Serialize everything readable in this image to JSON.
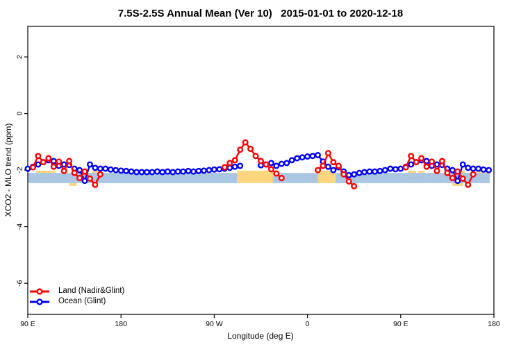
{
  "header": {
    "title": "7.5S-2.5S Annual Mean (Ver 10)   2015-01-01 to 2020-12-18"
  },
  "chart_data": {
    "type": "line",
    "title": "7.5S-2.5S Annual Mean (Ver 10)   2015-01-01 to 2020-12-18",
    "xlabel": "Longitude (deg E)",
    "ylabel": "XCO2 - MLO trend (ppm)",
    "xlim": [
      90,
      540
    ],
    "ylim": [
      -7.1,
      3.08
    ],
    "grid": false,
    "x_ticks": [
      {
        "value": 90,
        "label": "90 E"
      },
      {
        "value": 180,
        "label": "180"
      },
      {
        "value": 270,
        "label": "90 W"
      },
      {
        "value": 360,
        "label": "0"
      },
      {
        "value": 450,
        "label": "90 E"
      },
      {
        "value": 540,
        "label": "180"
      }
    ],
    "y_ticks": [
      2,
      0,
      -2,
      -4,
      -6
    ],
    "legend": {
      "position": "bottom-left",
      "entries": [
        {
          "label": "Land (Nadir&Glint)",
          "color": "#ff0000"
        },
        {
          "label": "Ocean (Glint)",
          "color": "#0000ff"
        }
      ]
    },
    "x": [
      90,
      95,
      100,
      105,
      110,
      115,
      120,
      125,
      130,
      135,
      140,
      145,
      150,
      155,
      160,
      165,
      170,
      175,
      180,
      185,
      190,
      195,
      200,
      205,
      210,
      215,
      220,
      225,
      230,
      235,
      240,
      245,
      250,
      255,
      260,
      265,
      270,
      275,
      280,
      285,
      290,
      295,
      300,
      305,
      310,
      315,
      320,
      325,
      330,
      335,
      340,
      345,
      350,
      355,
      360,
      365,
      370,
      375,
      380,
      385,
      390,
      395,
      400,
      405,
      410,
      415,
      420,
      425,
      430,
      435,
      440,
      445,
      450,
      455,
      460,
      465,
      470,
      475,
      480,
      485,
      490,
      495,
      500,
      505,
      510,
      515,
      520,
      525,
      530,
      535
    ],
    "series": [
      {
        "name": "Land (Nadir&Glint)",
        "color": "#ff0000",
        "values": [
          null,
          -1.9,
          -1.5,
          -1.72,
          -1.58,
          -1.88,
          -1.7,
          -2.03,
          -1.68,
          -2.1,
          -2.28,
          -2.05,
          -2.3,
          -2.52,
          -2.15,
          null,
          null,
          null,
          null,
          null,
          null,
          null,
          null,
          null,
          null,
          null,
          null,
          null,
          null,
          null,
          null,
          null,
          null,
          null,
          null,
          null,
          null,
          null,
          -1.9,
          -1.75,
          -1.65,
          -1.28,
          -1.02,
          -1.25,
          -1.5,
          -1.68,
          -1.8,
          -1.97,
          -2.12,
          -2.28,
          null,
          null,
          null,
          null,
          null,
          null,
          -2.0,
          -1.85,
          -1.4,
          -1.72,
          -1.85,
          -2.15,
          -2.4,
          -2.57,
          null,
          null,
          null,
          null,
          null,
          null,
          null,
          null,
          null,
          -1.9,
          -1.5,
          -1.72,
          -1.58,
          -1.88,
          -1.7,
          -2.03,
          -1.68,
          -2.1,
          -2.28,
          -2.05,
          -2.3,
          -2.52,
          -2.15,
          null,
          null,
          null
        ]
      },
      {
        "name": "Ocean (Glint)",
        "color": "#0000ff",
        "values": [
          -1.95,
          -1.88,
          -1.8,
          -1.72,
          -1.65,
          -1.68,
          -1.85,
          -1.8,
          -1.82,
          -1.95,
          -2.0,
          -2.38,
          -1.8,
          -1.92,
          -1.95,
          -1.95,
          -1.98,
          -2.0,
          -2.02,
          -2.03,
          -2.05,
          -2.07,
          -2.07,
          -2.07,
          -2.07,
          -2.05,
          -2.07,
          -2.05,
          -2.07,
          -2.05,
          -2.05,
          -2.03,
          -2.05,
          -2.03,
          -2.02,
          -2.0,
          -1.98,
          -1.97,
          -1.95,
          -1.92,
          -1.88,
          -1.85,
          null,
          null,
          null,
          -1.83,
          -1.8,
          -1.75,
          -1.85,
          -1.78,
          -1.75,
          -1.65,
          -1.58,
          -1.55,
          -1.52,
          -1.5,
          -1.47,
          -1.7,
          -1.88,
          -2.0,
          -1.9,
          -2.05,
          -2.18,
          -2.15,
          -2.1,
          -2.07,
          -2.05,
          -2.05,
          -2.03,
          -2.0,
          -1.95,
          -1.97,
          -1.95,
          -1.88,
          -1.8,
          -1.72,
          -1.65,
          -1.68,
          -1.85,
          -1.8,
          -1.82,
          -1.95,
          -2.0,
          -2.38,
          -1.8,
          -1.92,
          -1.95,
          -1.95,
          -1.98,
          -2.0
        ]
      }
    ],
    "bands": {
      "blue_color": "#aac6e2",
      "yellow_color": "#fbd67e",
      "yellow_top": -2.02,
      "blue_top": -2.1,
      "band_bottom": -2.46,
      "bottom_patch_bottom": -2.56,
      "blue_segments": [
        [
          90,
          292
        ],
        [
          327,
          370
        ],
        [
          387,
          536
        ]
      ],
      "yellow_segments": [
        [
          292,
          327
        ],
        [
          370,
          387
        ]
      ],
      "yellow_top_patches": [
        [
          98,
          117
        ],
        [
          122,
          128
        ],
        [
          152,
          159
        ],
        [
          457,
          465
        ],
        [
          467,
          473
        ],
        [
          494,
          512
        ],
        [
          523,
          536
        ]
      ],
      "yellow_bottom_patches": [
        [
          130,
          137
        ],
        [
          500,
          510
        ]
      ]
    }
  }
}
